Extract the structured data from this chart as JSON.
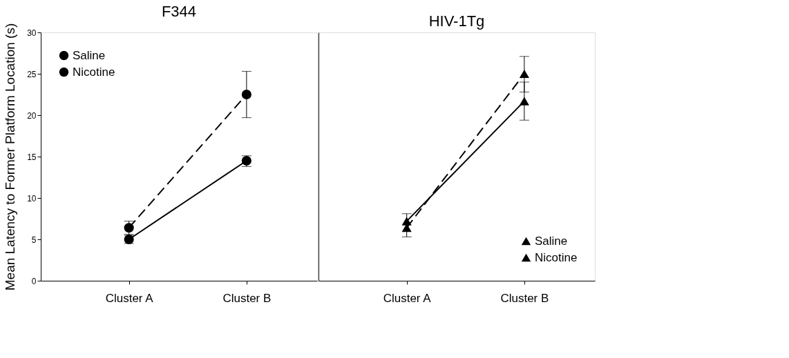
{
  "chart_data": [
    {
      "type": "line",
      "title": "F344",
      "ylabel": "Mean Latency to Former Platform Location (s)",
      "categories": [
        "Cluster A",
        "Cluster B"
      ],
      "ylim": [
        0,
        30
      ],
      "yticks": [
        0,
        5,
        10,
        15,
        20,
        25,
        30
      ],
      "grid": false,
      "legend": "top left",
      "marker": "circle",
      "series": [
        {
          "name": "Saline",
          "color": "#000000",
          "line_style": "dashed",
          "values": [
            6.4,
            22.5
          ],
          "errors": [
            [
              5.6,
              7.2
            ],
            [
              19.7,
              25.3
            ]
          ]
        },
        {
          "name": "Nicotine",
          "color": "#000000",
          "line_style": "solid",
          "values": [
            5.0,
            14.5
          ],
          "errors": [
            [
              4.5,
              5.5
            ],
            [
              13.8,
              15.1
            ]
          ]
        }
      ]
    },
    {
      "type": "line",
      "title": "HIV-1Tg",
      "categories": [
        "Cluster A",
        "Cluster B"
      ],
      "ylim": [
        0,
        30
      ],
      "yticks": [
        0,
        5,
        10,
        15,
        20,
        25,
        30
      ],
      "tick_labels": "x",
      "grid": false,
      "legend": "bottom right",
      "marker": "triangle",
      "series": [
        {
          "name": "Saline",
          "color": "#000000",
          "line_style": "solid",
          "values": [
            7.2,
            21.7
          ],
          "errors": [
            null,
            [
              19.4,
              24.0
            ]
          ]
        },
        {
          "name": "Nicotine",
          "color": "#000000",
          "line_style": "dashed",
          "values": [
            6.4,
            25.0
          ],
          "errors": [
            [
              5.3,
              8.1
            ],
            [
              22.8,
              27.1
            ]
          ]
        }
      ]
    }
  ]
}
